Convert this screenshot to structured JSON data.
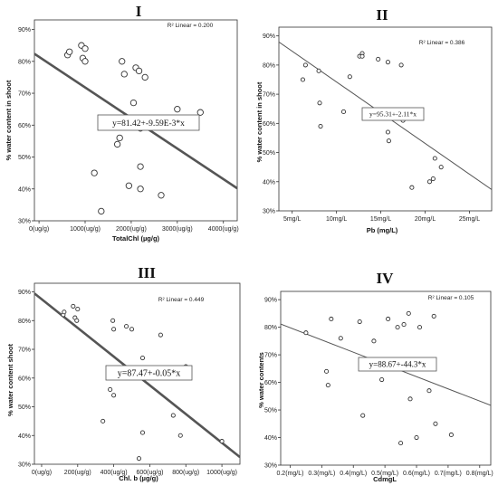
{
  "chart_data": [
    {
      "type": "scatter",
      "panel": "I",
      "xlabel": "TotalChl (µg/g)",
      "ylabel": "% water content in shoot",
      "xlim": [
        -100,
        4300
      ],
      "ylim": [
        30,
        93
      ],
      "x_ticks": [
        0,
        1000,
        2000,
        3000,
        4000
      ],
      "x_tick_labels": [
        "0(ug/g)",
        "1000(ug/g)",
        "2000(ug/g)",
        "3000(ug/g)",
        "4000(ug/g)"
      ],
      "y_ticks": [
        30,
        40,
        50,
        60,
        70,
        80,
        90
      ],
      "y_tick_labels": [
        "30%",
        "40%",
        "50%",
        "60%",
        "70%",
        "80%",
        "90%"
      ],
      "r2_label": "R² Linear = 0.200",
      "equation": "y=81.42+-9.59E-3*x",
      "fit": {
        "intercept": 81.42,
        "slope": -0.00959
      },
      "points": [
        [
          620,
          82
        ],
        [
          660,
          83
        ],
        [
          920,
          85
        ],
        [
          1000,
          84
        ],
        [
          950,
          81
        ],
        [
          1000,
          80
        ],
        [
          1800,
          80
        ],
        [
          1850,
          76
        ],
        [
          2100,
          78
        ],
        [
          2170,
          77
        ],
        [
          2300,
          75
        ],
        [
          2050,
          67
        ],
        [
          1750,
          56
        ],
        [
          1700,
          54
        ],
        [
          2200,
          59
        ],
        [
          1200,
          45
        ],
        [
          1950,
          41
        ],
        [
          2200,
          47
        ],
        [
          2200,
          40
        ],
        [
          1350,
          33
        ],
        [
          2650,
          38
        ],
        [
          3000,
          65
        ],
        [
          3500,
          64
        ]
      ]
    },
    {
      "type": "scatter",
      "panel": "II",
      "xlabel": "Pb (mg/L)",
      "ylabel": "% water content in shoot",
      "xlim": [
        3.5,
        27.5
      ],
      "ylim": [
        30,
        93
      ],
      "x_ticks": [
        5,
        10,
        15,
        20,
        25
      ],
      "x_tick_labels": [
        "5mg/L",
        "10mg/L",
        "15mg/L",
        "20mg/L",
        "25mg/L"
      ],
      "y_ticks": [
        30,
        40,
        50,
        60,
        70,
        80,
        90
      ],
      "y_tick_labels": [
        "30%",
        "40%",
        "50%",
        "60%",
        "70%",
        "80%",
        "90%"
      ],
      "r2_label": "R² Linear = 0.386",
      "equation": "y=95.31+-2.11*x",
      "fit": {
        "intercept": 95.31,
        "slope": -2.11
      },
      "points": [
        [
          6.5,
          80
        ],
        [
          6.2,
          75
        ],
        [
          8,
          78
        ],
        [
          8.1,
          67
        ],
        [
          8.2,
          59
        ],
        [
          10.8,
          64
        ],
        [
          11.5,
          76
        ],
        [
          12.6,
          83
        ],
        [
          12.9,
          84
        ],
        [
          12.9,
          83
        ],
        [
          14.7,
          82
        ],
        [
          15.8,
          81
        ],
        [
          17.3,
          80
        ],
        [
          15.8,
          57
        ],
        [
          15.9,
          54
        ],
        [
          17.5,
          61
        ],
        [
          18.5,
          38
        ],
        [
          20.5,
          40
        ],
        [
          20.9,
          41
        ],
        [
          21.1,
          48
        ],
        [
          21.8,
          45
        ]
      ]
    },
    {
      "type": "scatter",
      "panel": "III",
      "xlabel": "Chl. b (µg/g)",
      "ylabel": "% water content shoot",
      "xlim": [
        -40,
        1100
      ],
      "ylim": [
        30,
        93
      ],
      "x_ticks": [
        0,
        200,
        400,
        600,
        800,
        1000
      ],
      "x_tick_labels": [
        "0(ug/g)",
        "200(ug/g)",
        "400(ug/g)",
        "600(ug/g)",
        "800(ug/g)",
        "1000(ug/g)"
      ],
      "y_ticks": [
        30,
        40,
        50,
        60,
        70,
        80,
        90
      ],
      "y_tick_labels": [
        "30%",
        "40%",
        "50%",
        "60%",
        "70%",
        "80%",
        "90%"
      ],
      "r2_label": "R² Linear = 0.449",
      "equation": "y=87.47+-0.05*x",
      "fit": {
        "intercept": 87.47,
        "slope": -0.05
      },
      "points": [
        [
          120,
          82
        ],
        [
          125,
          83
        ],
        [
          175,
          85
        ],
        [
          185,
          81
        ],
        [
          195,
          80
        ],
        [
          200,
          84
        ],
        [
          395,
          80
        ],
        [
          400,
          77
        ],
        [
          470,
          78
        ],
        [
          500,
          77
        ],
        [
          560,
          67
        ],
        [
          660,
          75
        ],
        [
          670,
          61
        ],
        [
          380,
          56
        ],
        [
          400,
          54
        ],
        [
          340,
          45
        ],
        [
          560,
          41
        ],
        [
          540,
          32
        ],
        [
          730,
          47
        ],
        [
          770,
          40
        ],
        [
          800,
          64
        ],
        [
          1000,
          38
        ]
      ]
    },
    {
      "type": "scatter",
      "panel": "IV",
      "xlabel": "CdmgL",
      "ylabel": "% water contents",
      "xlim": [
        0.17,
        0.835
      ],
      "ylim": [
        30,
        93
      ],
      "x_ticks": [
        0.2,
        0.3,
        0.4,
        0.5,
        0.6,
        0.7,
        0.8
      ],
      "x_tick_labels": [
        "0.2(mg/L)",
        "0.3(mg/L)",
        "0.4(mg/L)",
        "0.5(mg/L)",
        "0.6(mg/L)",
        "0.7(mg/L)",
        "0.8(mg/L)"
      ],
      "y_ticks": [
        30,
        40,
        50,
        60,
        70,
        80,
        90
      ],
      "y_tick_labels": [
        "30%",
        "40%",
        "50%",
        "60%",
        "70%",
        "80%",
        "90%"
      ],
      "r2_label": "R² Linear = 0.105",
      "equation": "y=88.67+-44.3*x",
      "fit": {
        "intercept": 88.67,
        "slope": -44.3
      },
      "points": [
        [
          0.25,
          78
        ],
        [
          0.315,
          64
        ],
        [
          0.32,
          59
        ],
        [
          0.33,
          83
        ],
        [
          0.36,
          76
        ],
        [
          0.42,
          82
        ],
        [
          0.43,
          48
        ],
        [
          0.465,
          75
        ],
        [
          0.49,
          61
        ],
        [
          0.51,
          83
        ],
        [
          0.54,
          80
        ],
        [
          0.575,
          85
        ],
        [
          0.56,
          81
        ],
        [
          0.58,
          54
        ],
        [
          0.55,
          38
        ],
        [
          0.6,
          40
        ],
        [
          0.61,
          80
        ],
        [
          0.64,
          57
        ],
        [
          0.655,
          84
        ],
        [
          0.66,
          45
        ],
        [
          0.71,
          41
        ]
      ]
    }
  ]
}
